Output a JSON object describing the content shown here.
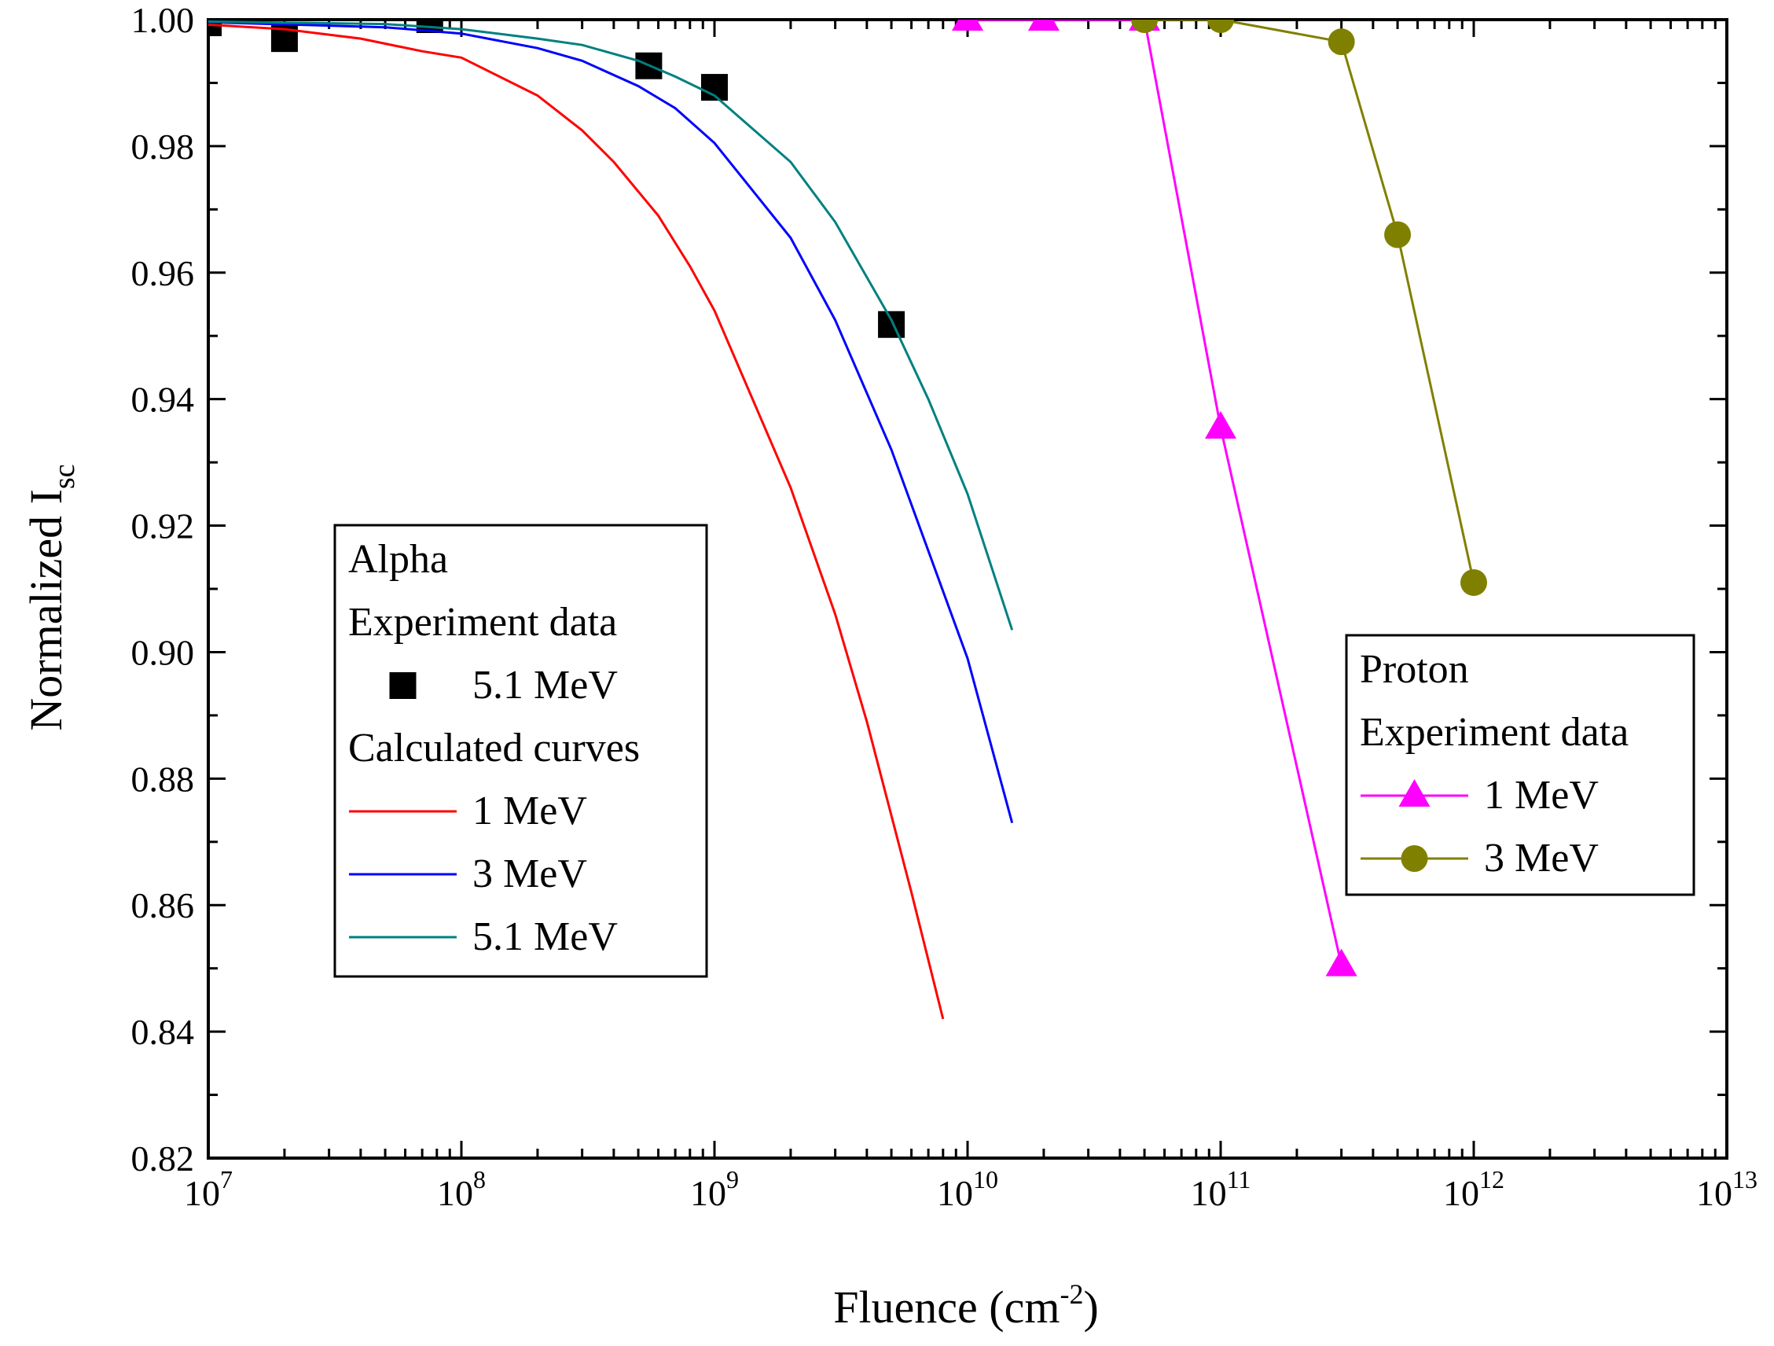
{
  "chart_data": {
    "type": "line",
    "xlabel": {
      "base": "Fluence (cm",
      "sup": "-2",
      "tail": ")"
    },
    "ylabel": {
      "base": "Normalized I",
      "sub": "sc"
    },
    "x_scale": "log",
    "xlim": [
      10000000,
      10000000000000
    ],
    "ylim": [
      0.82,
      1.0
    ],
    "x_ticks": [
      {
        "value": 10000000,
        "base": "10",
        "exp": "7"
      },
      {
        "value": 100000000,
        "base": "10",
        "exp": "8"
      },
      {
        "value": 1000000000,
        "base": "10",
        "exp": "9"
      },
      {
        "value": 10000000000,
        "base": "10",
        "exp": "10"
      },
      {
        "value": 100000000000,
        "base": "10",
        "exp": "11"
      },
      {
        "value": 1000000000000,
        "base": "10",
        "exp": "12"
      },
      {
        "value": 10000000000000,
        "base": "10",
        "exp": "13"
      }
    ],
    "y_ticks": [
      "0.82",
      "0.84",
      "0.86",
      "0.88",
      "0.90",
      "0.92",
      "0.94",
      "0.96",
      "0.98",
      "1.00"
    ],
    "grid": false,
    "series": [
      {
        "name": "5.1 MeV",
        "group": "alpha-exp",
        "marker": "square",
        "line": false,
        "color": "#000000",
        "x": [
          10000000,
          20000000,
          75000000,
          550000000,
          1000000000,
          5000000000
        ],
        "y": [
          0.9995,
          0.997,
          1.0,
          0.9927,
          0.9893,
          0.9518
        ]
      },
      {
        "name": "1 MeV",
        "group": "alpha-calc",
        "marker": "none",
        "line": true,
        "color": "#ff0000",
        "x": [
          10000000,
          20000000,
          40000000,
          70000000,
          100000000,
          200000000,
          300000000,
          400000000,
          600000000,
          800000000,
          1000000000,
          2000000000,
          3000000000,
          4000000000,
          6000000000,
          8000000000
        ],
        "y": [
          0.9992,
          0.9985,
          0.997,
          0.995,
          0.994,
          0.988,
          0.9825,
          0.9775,
          0.969,
          0.961,
          0.954,
          0.926,
          0.906,
          0.889,
          0.862,
          0.842
        ]
      },
      {
        "name": "3 MeV",
        "group": "alpha-calc",
        "marker": "none",
        "line": true,
        "color": "#0000ff",
        "x": [
          10000000,
          50000000,
          100000000,
          200000000,
          300000000,
          500000000,
          700000000,
          1000000000,
          2000000000,
          3000000000,
          5000000000,
          7000000000,
          10000000000,
          15000000000
        ],
        "y": [
          0.9996,
          0.9988,
          0.9978,
          0.9955,
          0.9935,
          0.9895,
          0.986,
          0.9805,
          0.9655,
          0.9525,
          0.932,
          0.916,
          0.899,
          0.873
        ]
      },
      {
        "name": "5.1 MeV",
        "group": "alpha-calc",
        "marker": "none",
        "line": true,
        "color": "#008080",
        "x": [
          10000000,
          50000000,
          100000000,
          200000000,
          300000000,
          500000000,
          700000000,
          1000000000,
          2000000000,
          3000000000,
          5000000000,
          7000000000,
          10000000000,
          15000000000
        ],
        "y": [
          0.9997,
          0.9993,
          0.9985,
          0.997,
          0.996,
          0.9935,
          0.991,
          0.988,
          0.9775,
          0.968,
          0.9525,
          0.94,
          0.925,
          0.9035
        ]
      },
      {
        "name": "1 MeV",
        "group": "proton",
        "marker": "triangle",
        "line": true,
        "color": "#ff00ff",
        "x": [
          10000000000,
          20000000000,
          50000000000,
          100000000000,
          300000000000
        ],
        "y": [
          1.0,
          1.0,
          1.0,
          0.9355,
          0.8505
        ]
      },
      {
        "name": "3 MeV",
        "group": "proton",
        "marker": "circle",
        "line": true,
        "color": "#808000",
        "x": [
          50000000000,
          100000000000,
          300000000000,
          500000000000,
          1000000000000
        ],
        "y": [
          1.0,
          1.0,
          0.9965,
          0.966,
          0.911
        ]
      }
    ],
    "legends": [
      {
        "position": "center-left",
        "entries": [
          {
            "text": "Alpha"
          },
          {
            "text": "Experiment data"
          },
          {
            "text": "5.1 MeV",
            "series": 0
          },
          {
            "text": "Calculated curves"
          },
          {
            "text": "1 MeV",
            "series": 1
          },
          {
            "text": "3 MeV",
            "series": 2
          },
          {
            "text": "5.1 MeV",
            "series": 3
          }
        ]
      },
      {
        "position": "center-right",
        "entries": [
          {
            "text": "Proton"
          },
          {
            "text": "Experiment data"
          },
          {
            "text": "1 MeV",
            "series": 4
          },
          {
            "text": "3 MeV",
            "series": 5
          }
        ]
      }
    ]
  }
}
